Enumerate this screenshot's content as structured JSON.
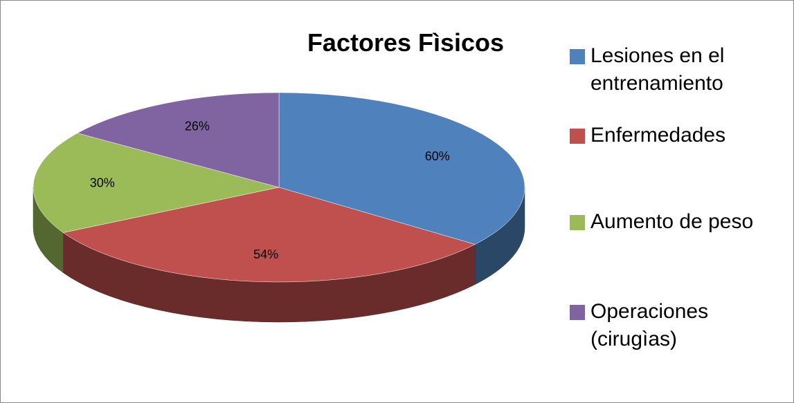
{
  "chart_data": {
    "type": "pie",
    "title": "Factores Fìsicos",
    "categories": [
      "Lesiones en el entrenamiento",
      "Enfermedades",
      "Aumento de peso",
      "Operaciones (cirugìas)"
    ],
    "values": [
      60,
      54,
      30,
      26
    ],
    "value_labels": [
      "60%",
      "54%",
      "30%",
      "26%"
    ],
    "colors": [
      "#4f81bd",
      "#c0504d",
      "#9bbb59",
      "#8064a2"
    ],
    "legend": "right"
  }
}
